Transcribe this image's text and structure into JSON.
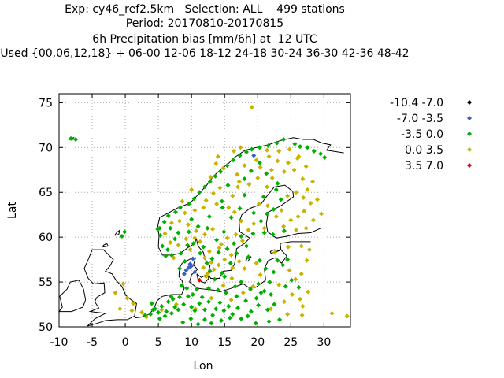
{
  "title_lines": [
    "Exp: cy46_ref2.5km   Selection: ALL    499 stations",
    "Period: 20170810-20170815",
    "6h Precipitation bias [mm/6h] at  12 UTC",
    "Used {00,06,12,18} + 06-00 12-06 18-12 24-18 30-24 36-30 42-36 48-42"
  ],
  "chart_data": {
    "type": "scatter",
    "xlabel": "Lon",
    "ylabel": "Lat",
    "xlim": [
      -10,
      34
    ],
    "ylim": [
      50,
      76
    ],
    "xticks": [
      -10,
      -5,
      0,
      5,
      10,
      15,
      20,
      25,
      30
    ],
    "yticks": [
      50,
      55,
      60,
      65,
      70,
      75
    ],
    "grid": true,
    "legend_position": "right",
    "legend": [
      {
        "label": "-10.4 -7.0",
        "color": "#000000"
      },
      {
        "label": "-7.0 -3.5",
        "color": "#3a5fcd"
      },
      {
        "label": "-3.5 0.0",
        "color": "#00b000"
      },
      {
        "label": "0.0 3.5",
        "color": "#c8b400"
      },
      {
        "label": "3.5 7.0",
        "color": "#ee0000"
      }
    ],
    "series": [
      {
        "name": "-7.0 -3.5",
        "points": [
          [
            9.2,
            56.3
          ],
          [
            9.8,
            57.0
          ],
          [
            10.2,
            57.6
          ],
          [
            9.6,
            56.6
          ],
          [
            10.5,
            56.1
          ],
          [
            19.4,
            69.1
          ],
          [
            8.9,
            55.9
          ],
          [
            10.0,
            56.8
          ]
        ]
      },
      {
        "name": "3.5 7.0",
        "points": [
          [
            11.2,
            55.2
          ]
        ]
      },
      {
        "name": "-3.5 0.0",
        "points": [
          [
            -8.2,
            71.0
          ],
          [
            -7.5,
            70.9
          ],
          [
            -0.1,
            60.6
          ],
          [
            -0.5,
            60.1
          ],
          [
            3.8,
            51.4
          ],
          [
            4.5,
            52.0
          ],
          [
            5.0,
            51.6
          ],
          [
            5.5,
            52.3
          ],
          [
            6.0,
            51.2
          ],
          [
            6.5,
            52.8
          ],
          [
            4.2,
            51.9
          ],
          [
            5.2,
            50.9
          ],
          [
            6.2,
            51.7
          ],
          [
            7.0,
            51.5
          ],
          [
            7.5,
            52.2
          ],
          [
            8.0,
            51.9
          ],
          [
            7.2,
            53.1
          ],
          [
            8.2,
            53.3
          ],
          [
            8.8,
            52.5
          ],
          [
            9.5,
            53.4
          ],
          [
            10.0,
            52.2
          ],
          [
            10.5,
            51.8
          ],
          [
            11.2,
            52.6
          ],
          [
            12.0,
            51.9
          ],
          [
            12.6,
            52.8
          ],
          [
            13.2,
            51.3
          ],
          [
            13.7,
            52.0
          ],
          [
            14.3,
            52.7
          ],
          [
            14.9,
            51.8
          ],
          [
            15.6,
            52.3
          ],
          [
            16.2,
            51.4
          ],
          [
            17.0,
            52.1
          ],
          [
            18.2,
            52.9
          ],
          [
            19.0,
            51.7
          ],
          [
            20.1,
            52.4
          ],
          [
            21.5,
            51.9
          ],
          [
            22.5,
            52.5
          ],
          [
            18.5,
            51.2
          ],
          [
            16.8,
            53.4
          ],
          [
            18.9,
            54.2
          ],
          [
            20.5,
            53.8
          ],
          [
            22.0,
            53.6
          ],
          [
            17.5,
            55.0
          ],
          [
            14.0,
            54.1
          ],
          [
            12.6,
            54.3
          ],
          [
            8.5,
            54.6
          ],
          [
            9.3,
            54.3
          ],
          [
            10.8,
            54.2
          ],
          [
            13.5,
            55.3
          ],
          [
            15.0,
            55.6
          ],
          [
            16.6,
            54.5
          ],
          [
            20.1,
            54.8
          ],
          [
            21.8,
            55.0
          ],
          [
            22.4,
            56.1
          ],
          [
            23.8,
            56.9
          ],
          [
            24.5,
            57.5
          ],
          [
            25.1,
            55.2
          ],
          [
            26.2,
            54.4
          ],
          [
            23.0,
            57.4
          ],
          [
            21.2,
            56.5
          ],
          [
            20.3,
            57.4
          ],
          [
            18.6,
            57.8
          ],
          [
            18.3,
            59.0
          ],
          [
            17.5,
            60.1
          ],
          [
            16.4,
            59.3
          ],
          [
            15.4,
            58.7
          ],
          [
            14.1,
            58.3
          ],
          [
            13.1,
            57.6
          ],
          [
            12.3,
            57.1
          ],
          [
            12.8,
            56.2
          ],
          [
            11.8,
            58.9
          ],
          [
            11.3,
            58.2
          ],
          [
            10.3,
            59.3
          ],
          [
            9.4,
            59.1
          ],
          [
            8.4,
            58.2
          ],
          [
            7.0,
            58.0
          ],
          [
            6.4,
            58.6
          ],
          [
            5.6,
            59.0
          ],
          [
            5.3,
            60.2
          ],
          [
            5.2,
            61.0
          ],
          [
            5.9,
            61.7
          ],
          [
            6.5,
            62.4
          ],
          [
            7.6,
            62.8
          ],
          [
            8.3,
            63.3
          ],
          [
            9.6,
            63.7
          ],
          [
            10.4,
            64.3
          ],
          [
            11.2,
            65.0
          ],
          [
            12.0,
            65.6
          ],
          [
            12.8,
            66.2
          ],
          [
            13.6,
            66.8
          ],
          [
            14.4,
            67.3
          ],
          [
            15.4,
            68.0
          ],
          [
            16.3,
            68.6
          ],
          [
            17.3,
            69.1
          ],
          [
            18.3,
            69.5
          ],
          [
            19.1,
            69.8
          ],
          [
            20.3,
            70.0
          ],
          [
            21.6,
            70.2
          ],
          [
            22.9,
            70.5
          ],
          [
            23.9,
            70.9
          ],
          [
            25.6,
            70.4
          ],
          [
            26.4,
            70.1
          ],
          [
            27.5,
            70.0
          ],
          [
            28.5,
            69.6
          ],
          [
            29.5,
            69.3
          ],
          [
            30.1,
            68.9
          ],
          [
            23.5,
            64.2
          ],
          [
            22.4,
            63.1
          ],
          [
            21.4,
            62.6
          ],
          [
            20.5,
            61.8
          ],
          [
            19.3,
            60.4
          ],
          [
            21.0,
            60.5
          ],
          [
            22.3,
            60.3
          ],
          [
            24.0,
            60.7
          ],
          [
            16.0,
            62.2
          ],
          [
            17.3,
            63.2
          ],
          [
            14.6,
            64.0
          ],
          [
            15.5,
            65.8
          ],
          [
            18.0,
            66.5
          ],
          [
            19.0,
            67.4
          ],
          [
            21.3,
            67.1
          ],
          [
            20.3,
            68.3
          ],
          [
            23.0,
            66.0
          ],
          [
            9.6,
            60.6
          ],
          [
            8.0,
            60.5
          ],
          [
            11.0,
            61.2
          ],
          [
            12.4,
            61.0
          ],
          [
            10.0,
            62.0
          ],
          [
            6.8,
            61.0
          ],
          [
            7.5,
            59.8
          ],
          [
            4.9,
            60.9
          ],
          [
            6.1,
            57.9
          ],
          [
            8.2,
            56.5
          ],
          [
            9.0,
            57.3
          ],
          [
            14.6,
            56.0
          ],
          [
            15.9,
            57.1
          ],
          [
            16.8,
            58.2
          ],
          [
            13.8,
            59.7
          ],
          [
            14.9,
            60.6
          ],
          [
            12.7,
            62.3
          ],
          [
            14.7,
            63.3
          ],
          [
            18.0,
            64.7
          ],
          [
            20.9,
            64.5
          ],
          [
            19.4,
            62.7
          ],
          [
            22.8,
            65.3
          ],
          [
            3.0,
            51.3
          ],
          [
            4.0,
            52.6
          ],
          [
            6.9,
            53.4
          ],
          [
            10.2,
            53.6
          ],
          [
            11.6,
            53.3
          ],
          [
            15.2,
            53.8
          ],
          [
            12.0,
            50.8
          ],
          [
            14.5,
            50.7
          ],
          [
            17.5,
            50.9
          ],
          [
            19.7,
            50.4
          ],
          [
            21.7,
            50.6
          ],
          [
            23.3,
            50.8
          ],
          [
            8.7,
            50.5
          ],
          [
            9.9,
            50.9
          ],
          [
            11.0,
            50.3
          ],
          [
            13.0,
            50.4
          ],
          [
            15.8,
            51.0
          ],
          [
            19.8,
            53.2
          ],
          [
            21.0,
            54.0
          ],
          [
            24.2,
            54.5
          ]
        ]
      },
      {
        "name": "0.0 3.5",
        "points": [
          [
            19.1,
            74.5
          ],
          [
            -0.3,
            54.8
          ],
          [
            -1.5,
            53.8
          ],
          [
            0.3,
            53.2
          ],
          [
            1.2,
            52.6
          ],
          [
            2.5,
            51.6
          ],
          [
            -0.8,
            52.0
          ],
          [
            1.0,
            51.8
          ],
          [
            3.2,
            51.1
          ],
          [
            5.5,
            51.9
          ],
          [
            7.7,
            52.5
          ],
          [
            10.6,
            52.0
          ],
          [
            13.0,
            53.2
          ],
          [
            16.0,
            53.0
          ],
          [
            17.8,
            53.8
          ],
          [
            19.3,
            54.5
          ],
          [
            22.0,
            52.0
          ],
          [
            24.0,
            52.8
          ],
          [
            25.2,
            53.6
          ],
          [
            26.4,
            53.1
          ],
          [
            26.8,
            52.3
          ],
          [
            24.5,
            51.4
          ],
          [
            26.7,
            51.3
          ],
          [
            31.2,
            51.5
          ],
          [
            33.5,
            51.2
          ],
          [
            27.6,
            53.9
          ],
          [
            25.7,
            55.3
          ],
          [
            26.6,
            55.9
          ],
          [
            24.8,
            56.3
          ],
          [
            23.2,
            54.7
          ],
          [
            20.4,
            55.8
          ],
          [
            18.0,
            56.5
          ],
          [
            17.2,
            57.3
          ],
          [
            16.0,
            58.0
          ],
          [
            15.0,
            57.5
          ],
          [
            14.1,
            56.9
          ],
          [
            13.4,
            56.4
          ],
          [
            12.2,
            55.6
          ],
          [
            12.4,
            55.9
          ],
          [
            11.8,
            56.6
          ],
          [
            13.0,
            57.2
          ],
          [
            12.0,
            57.7
          ],
          [
            11.3,
            59.5
          ],
          [
            10.5,
            59.9
          ],
          [
            9.2,
            59.8
          ],
          [
            8.0,
            59.1
          ],
          [
            6.8,
            59.4
          ],
          [
            6.0,
            60.4
          ],
          [
            7.0,
            61.6
          ],
          [
            8.2,
            61.8
          ],
          [
            9.5,
            61.4
          ],
          [
            10.7,
            60.7
          ],
          [
            12.0,
            60.3
          ],
          [
            13.2,
            60.9
          ],
          [
            14.5,
            59.2
          ],
          [
            15.4,
            59.9
          ],
          [
            16.7,
            60.3
          ],
          [
            17.7,
            59.6
          ],
          [
            18.6,
            60.8
          ],
          [
            19.4,
            61.5
          ],
          [
            17.5,
            61.8
          ],
          [
            16.5,
            62.8
          ],
          [
            15.6,
            63.3
          ],
          [
            13.8,
            63.7
          ],
          [
            12.2,
            64.1
          ],
          [
            13.3,
            64.9
          ],
          [
            14.3,
            65.5
          ],
          [
            16.2,
            64.6
          ],
          [
            17.0,
            65.6
          ],
          [
            18.7,
            65.9
          ],
          [
            20.0,
            66.6
          ],
          [
            21.4,
            65.6
          ],
          [
            22.2,
            66.6
          ],
          [
            24.0,
            67.3
          ],
          [
            25.5,
            67.5
          ],
          [
            26.8,
            66.5
          ],
          [
            27.5,
            65.3
          ],
          [
            28.0,
            63.8
          ],
          [
            27.0,
            62.9
          ],
          [
            26.1,
            62.3
          ],
          [
            25.0,
            61.9
          ],
          [
            23.9,
            61.2
          ],
          [
            25.8,
            60.8
          ],
          [
            27.3,
            61.0
          ],
          [
            28.4,
            61.9
          ],
          [
            29.6,
            62.6
          ],
          [
            29.0,
            64.2
          ],
          [
            28.3,
            66.2
          ],
          [
            27.3,
            67.9
          ],
          [
            26.0,
            68.8
          ],
          [
            24.6,
            68.3
          ],
          [
            23.0,
            68.5
          ],
          [
            21.7,
            69.0
          ],
          [
            19.8,
            68.6
          ],
          [
            18.0,
            68.0
          ],
          [
            16.9,
            67.0
          ],
          [
            14.8,
            67.7
          ],
          [
            13.7,
            68.2
          ],
          [
            20.2,
            63.7
          ],
          [
            21.5,
            63.5
          ],
          [
            23.6,
            63.0
          ],
          [
            24.5,
            64.6
          ],
          [
            25.8,
            65.0
          ],
          [
            26.9,
            64.4
          ],
          [
            22.8,
            62.3
          ],
          [
            21.0,
            61.0
          ],
          [
            10.5,
            63.0
          ],
          [
            11.8,
            63.3
          ],
          [
            9.0,
            62.7
          ],
          [
            8.6,
            64.0
          ],
          [
            10.0,
            65.3
          ],
          [
            12.9,
            66.7
          ],
          [
            14.0,
            69.0
          ],
          [
            16.4,
            69.6
          ],
          [
            17.4,
            70.0
          ],
          [
            21.4,
            69.7
          ],
          [
            23.2,
            69.6
          ],
          [
            24.8,
            69.8
          ],
          [
            26.2,
            69.0
          ],
          [
            20.4,
            67.8
          ],
          [
            17.2,
            66.2
          ],
          [
            22.1,
            67.5
          ],
          [
            7.3,
            57.7
          ],
          [
            9.8,
            58.6
          ],
          [
            12.7,
            58.4
          ],
          [
            14.2,
            58.8
          ],
          [
            16.2,
            56.6
          ],
          [
            16.1,
            55.4
          ],
          [
            14.8,
            54.6
          ],
          [
            19.8,
            57.1
          ],
          [
            22.6,
            58.3
          ],
          [
            24.6,
            58.9
          ],
          [
            26.6,
            59.0
          ],
          [
            27.8,
            58.6
          ],
          [
            27.4,
            57.4
          ]
        ]
      }
    ]
  }
}
